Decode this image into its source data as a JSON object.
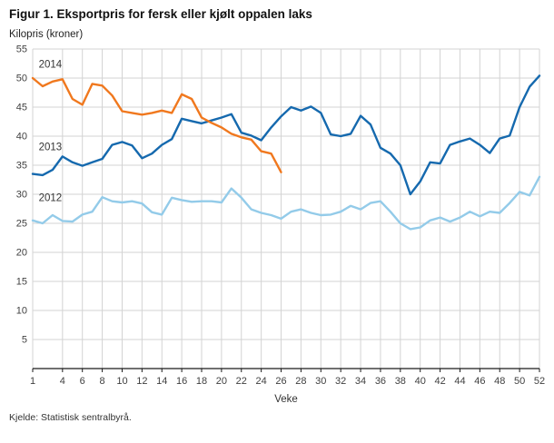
{
  "header": {
    "title": "Figur 1. Eksportpris for fersk eller kjølt oppalen laks",
    "subtitle": "Kilopris (kroner)"
  },
  "footer": {
    "source": "Kjelde: Statistisk sentralbyrå."
  },
  "chart_data": {
    "type": "line",
    "title": "Figur 1. Eksportpris for fersk eller kjølt oppalen laks",
    "ylabel": "Kilopris (kroner)",
    "xlabel": "Veke",
    "ylim": [
      0,
      55
    ],
    "xlim": [
      1,
      52
    ],
    "grid": true,
    "gridline_color": "#d3d3d3",
    "axis_color": "#1a1a1a",
    "legend_position": "inline-labels",
    "y_ticks": [
      5,
      10,
      15,
      20,
      25,
      30,
      35,
      40,
      45,
      50,
      55
    ],
    "x_ticks": [
      1,
      4,
      6,
      8,
      10,
      12,
      14,
      16,
      18,
      20,
      22,
      24,
      26,
      28,
      30,
      32,
      34,
      36,
      38,
      40,
      42,
      44,
      46,
      48,
      50,
      52
    ],
    "x": [
      1,
      2,
      3,
      4,
      5,
      6,
      7,
      8,
      9,
      10,
      11,
      12,
      13,
      14,
      15,
      16,
      17,
      18,
      19,
      20,
      21,
      22,
      23,
      24,
      25,
      26,
      27,
      28,
      29,
      30,
      31,
      32,
      33,
      34,
      35,
      36,
      37,
      38,
      39,
      40,
      41,
      42,
      43,
      44,
      45,
      46,
      47,
      48,
      49,
      50,
      51,
      52
    ],
    "series": [
      {
        "name": "2014",
        "color": "#f0781e",
        "label_pos": {
          "x": 1.6,
          "y": 51.8
        },
        "values": [
          50,
          48.6,
          49.4,
          49.8,
          46.4,
          45.4,
          49,
          48.7,
          47,
          44.3,
          44,
          43.7,
          44,
          44.4,
          44,
          47.2,
          46.4,
          43.2,
          42.3,
          41.5,
          40.4,
          39.8,
          39.4,
          37.4,
          37,
          33.8
        ]
      },
      {
        "name": "2013",
        "color": "#1569ae",
        "label_pos": {
          "x": 1.6,
          "y": 37.6
        },
        "values": [
          33.5,
          33.3,
          34.2,
          36.5,
          35.5,
          34.9,
          35.5,
          36.1,
          38.5,
          39,
          38.4,
          36.2,
          37,
          38.5,
          39.5,
          43,
          42.6,
          42.2,
          42.7,
          43.2,
          43.8,
          40.6,
          40.1,
          39.3,
          41.5,
          43.4,
          45,
          44.4,
          45.1,
          44,
          40.3,
          40,
          40.4,
          43.5,
          42,
          38,
          37,
          35,
          30,
          32.2,
          35.5,
          35.3,
          38.5,
          39.1,
          39.6,
          38.5,
          37.1,
          39.6,
          40.1,
          45,
          48.5,
          50.4
        ]
      },
      {
        "name": "2012",
        "color": "#93cbe9",
        "label_pos": {
          "x": 1.6,
          "y": 28.8
        },
        "values": [
          25.5,
          25,
          26.4,
          25.4,
          25.3,
          26.5,
          27,
          29.5,
          28.8,
          28.6,
          28.8,
          28.4,
          26.9,
          26.5,
          29.4,
          29,
          28.7,
          28.8,
          28.8,
          28.6,
          31,
          29.4,
          27.4,
          26.8,
          26.4,
          25.8,
          27,
          27.4,
          26.8,
          26.4,
          26.5,
          27,
          28,
          27.4,
          28.5,
          28.8,
          27,
          25,
          24,
          24.3,
          25.5,
          26,
          25.3,
          26,
          27,
          26.2,
          27,
          26.8,
          28.5,
          30.4,
          29.8,
          33
        ]
      }
    ]
  }
}
